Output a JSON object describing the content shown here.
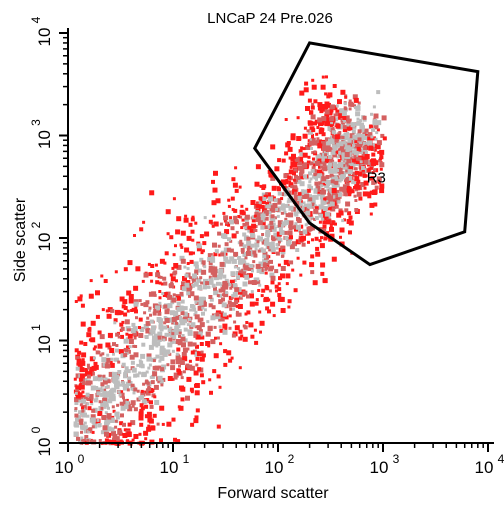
{
  "chart_data": {
    "type": "scatter",
    "subtype": "flow-cytometry density dot plot (log-log)",
    "title": "LNCaP 24 Pre.026",
    "xlabel": "Forward scatter",
    "ylabel": "Side scatter",
    "x_scale": "log",
    "y_scale": "log",
    "xlim": [
      1,
      10000
    ],
    "ylim": [
      1,
      10000
    ],
    "x_ticks": [
      {
        "value": 1,
        "base": "10",
        "exp": "0"
      },
      {
        "value": 10,
        "base": "10",
        "exp": "1"
      },
      {
        "value": 100,
        "base": "10",
        "exp": "2"
      },
      {
        "value": 1000,
        "base": "10",
        "exp": "3"
      },
      {
        "value": 10000,
        "base": "10",
        "exp": "4"
      }
    ],
    "y_ticks": [
      {
        "value": 1,
        "base": "10",
        "exp": "0"
      },
      {
        "value": 10,
        "base": "10",
        "exp": "1"
      },
      {
        "value": 100,
        "base": "10",
        "exp": "2"
      },
      {
        "value": 1000,
        "base": "10",
        "exp": "3"
      },
      {
        "value": 10000,
        "base": "10",
        "exp": "4"
      }
    ],
    "grid": false,
    "legend": "none",
    "colors": {
      "low_density": "#ff1a1a",
      "medium_density": "#d46060",
      "high_density": "#bdbdbd",
      "gate_outline": "#000000"
    },
    "density_population": {
      "description": "main cell population along the diagonal",
      "ridge": [
        {
          "x": 1.2,
          "y": 1.2
        },
        {
          "x": 3,
          "y": 4
        },
        {
          "x": 10,
          "y": 15
        },
        {
          "x": 40,
          "y": 60
        },
        {
          "x": 150,
          "y": 200
        },
        {
          "x": 400,
          "y": 600
        },
        {
          "x": 550,
          "y": 1500
        }
      ]
    },
    "gates": [
      {
        "name": "R3",
        "polygon": [
          {
            "x": 60,
            "y": 750
          },
          {
            "x": 200,
            "y": 8000
          },
          {
            "x": 8000,
            "y": 4200
          },
          {
            "x": 6000,
            "y": 115
          },
          {
            "x": 750,
            "y": 55
          },
          {
            "x": 200,
            "y": 140
          }
        ]
      }
    ]
  }
}
